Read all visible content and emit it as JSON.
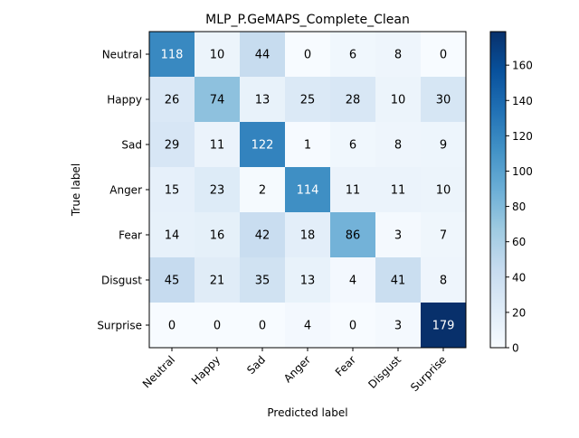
{
  "chart_data": {
    "type": "heatmap",
    "title": "MLP_P.GeMAPS_Complete_Clean",
    "xlabel": "Predicted label",
    "ylabel": "True label",
    "x_categories": [
      "Neutral",
      "Happy",
      "Sad",
      "Anger",
      "Fear",
      "Disgust",
      "Surprise"
    ],
    "y_categories": [
      "Neutral",
      "Happy",
      "Sad",
      "Anger",
      "Fear",
      "Disgust",
      "Surprise"
    ],
    "values": [
      [
        118,
        10,
        44,
        0,
        6,
        8,
        0
      ],
      [
        26,
        74,
        13,
        25,
        28,
        10,
        30
      ],
      [
        29,
        11,
        122,
        1,
        6,
        8,
        9
      ],
      [
        15,
        23,
        2,
        114,
        11,
        11,
        10
      ],
      [
        14,
        16,
        42,
        18,
        86,
        3,
        7
      ],
      [
        45,
        21,
        35,
        13,
        4,
        41,
        8
      ],
      [
        0,
        0,
        0,
        4,
        0,
        3,
        179
      ]
    ],
    "colormap": "Blues",
    "vmin": 0,
    "vmax": 179,
    "colorbar_ticks": [
      0,
      20,
      40,
      60,
      80,
      100,
      120,
      140,
      160
    ],
    "grid": false
  }
}
